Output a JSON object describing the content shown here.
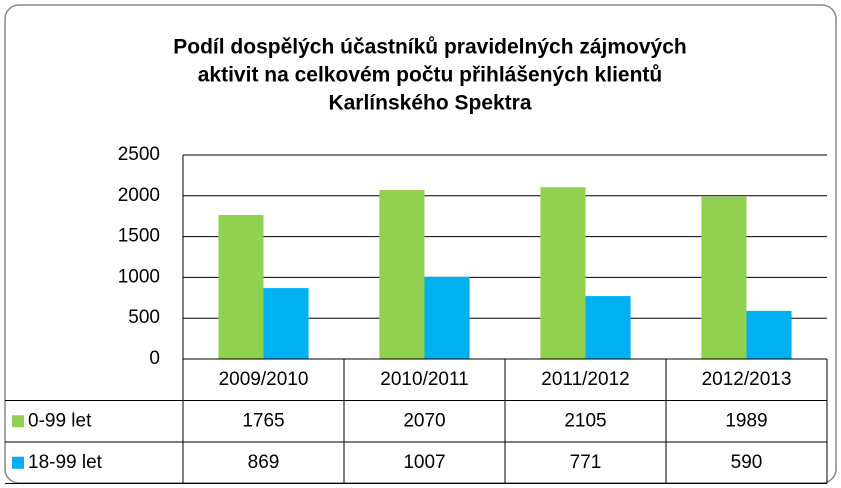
{
  "chart_data": {
    "type": "bar",
    "title": [
      "Podíl dospělých účastníků pravidelných zájmových",
      "aktivit na celkovém počtu přihlášených klientů",
      "Karlínského Spektra"
    ],
    "categories": [
      "2009/2010",
      "2010/2011",
      "2011/2012",
      "2012/2013"
    ],
    "series": [
      {
        "name": "0-99 let",
        "color": "#92d050",
        "values": [
          1765,
          2070,
          2105,
          1989
        ]
      },
      {
        "name": "18-99 let",
        "color": "#00b0f0",
        "values": [
          869,
          1007,
          771,
          590
        ]
      }
    ],
    "ylim": [
      0,
      2500
    ],
    "yticks": [
      0,
      500,
      1000,
      1500,
      2000,
      2500
    ],
    "grid": true,
    "data_table": true
  }
}
